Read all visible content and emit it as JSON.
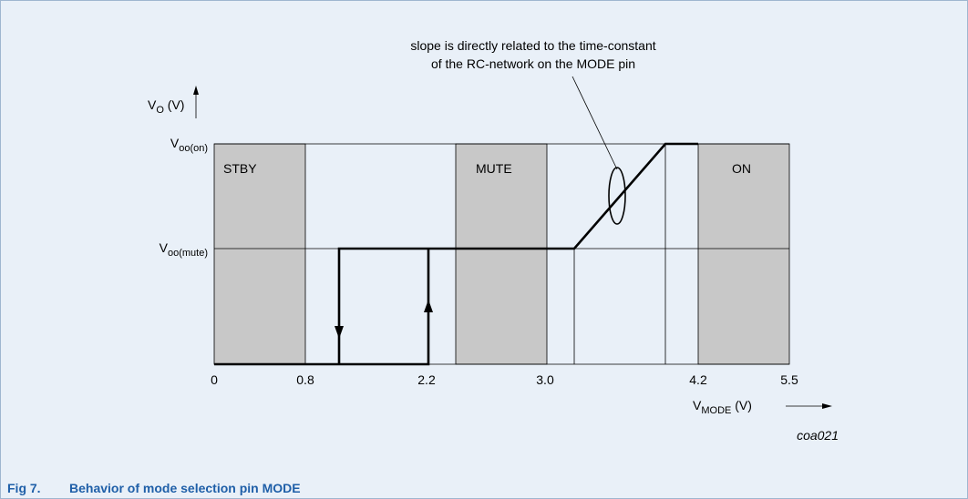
{
  "annotation": {
    "line1": "slope is directly related to the time-constant",
    "line2": "of the RC-network on the MODE pin"
  },
  "y_axis": {
    "main": "V",
    "sub": "O",
    "suffix": " (V)"
  },
  "x_axis": {
    "main": "V",
    "sub": "MODE",
    "suffix": " (V)"
  },
  "levels": [
    {
      "main": "V",
      "sub": "oo(on)"
    },
    {
      "main": "V",
      "sub": "oo(mute)"
    }
  ],
  "regions": [
    "STBY",
    "MUTE",
    "ON"
  ],
  "x_ticks": [
    "0",
    "0.8",
    "2.2",
    "3.0",
    "4.2",
    "5.5"
  ],
  "code": "coa021",
  "caption": {
    "number": "Fig 7.",
    "title": "Behavior of mode selection pin MODE"
  }
}
